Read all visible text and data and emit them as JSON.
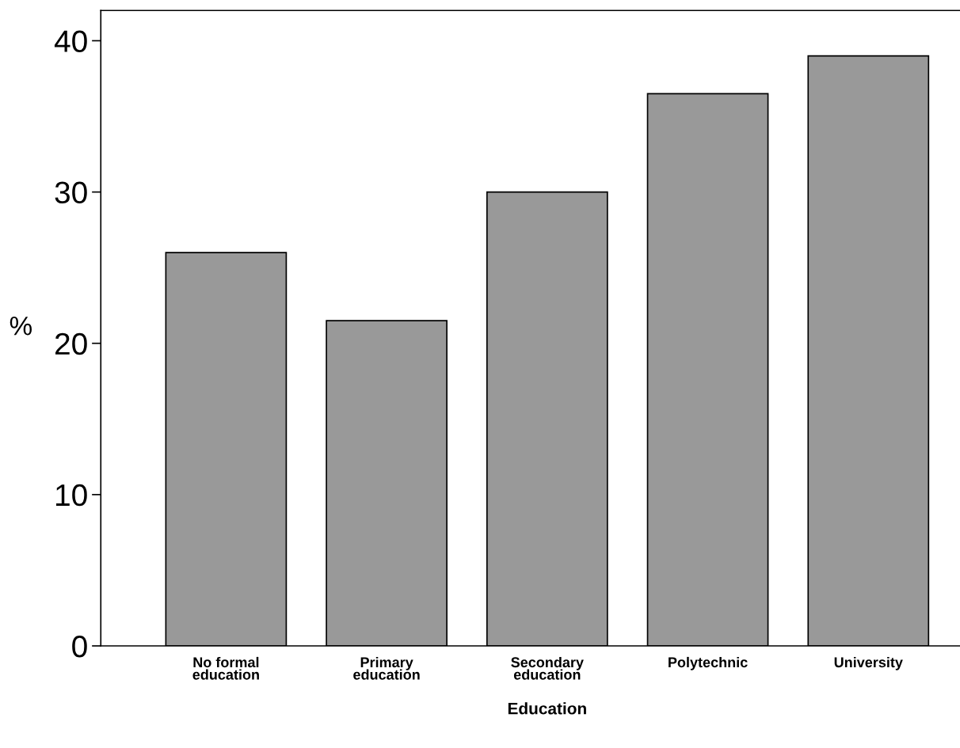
{
  "chart_data": {
    "type": "bar",
    "xlabel": "Education",
    "ylabel": "%",
    "categories": [
      "No formal\neducation",
      "Primary\neducation",
      "Secondary\neducation",
      "Polytechnic",
      "University"
    ],
    "values": [
      26.0,
      21.5,
      30.0,
      36.5,
      39.0
    ],
    "color": "#999999",
    "ylim": [
      0,
      42
    ],
    "yticks": [
      0,
      10,
      20,
      30,
      40
    ],
    "grid": false
  }
}
